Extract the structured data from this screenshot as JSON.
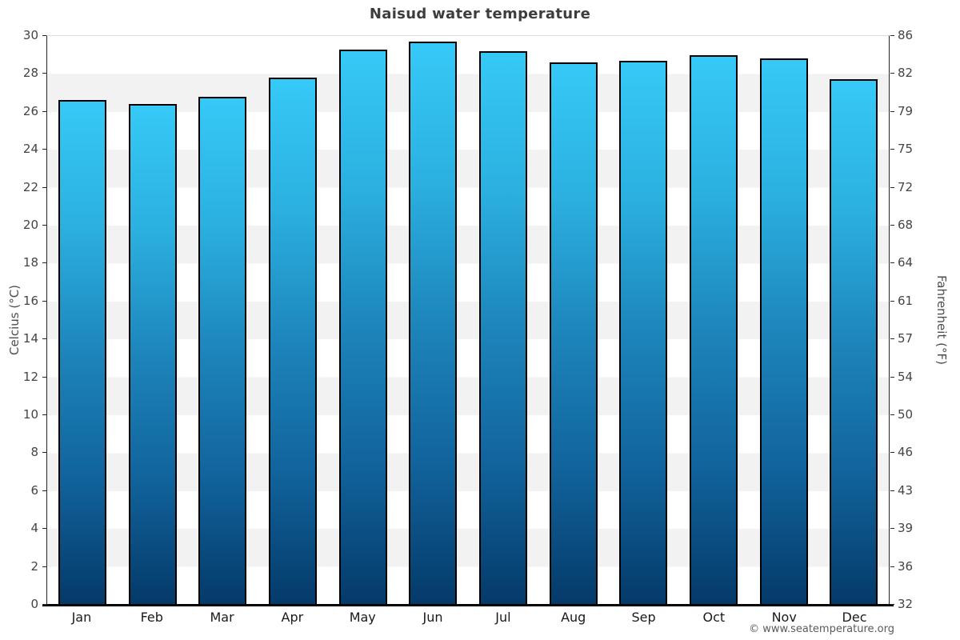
{
  "title": "Naisud water temperature",
  "y_axis_left": {
    "label": "Celcius (°C)"
  },
  "y_axis_right": {
    "label": "Fahrenheit (°F)"
  },
  "footer": {
    "copyright": "© www.seatemperature.org"
  },
  "chart_data": {
    "type": "bar",
    "title": "Naisud water temperature",
    "categories": [
      "Jan",
      "Feb",
      "Mar",
      "Apr",
      "May",
      "Jun",
      "Jul",
      "Aug",
      "Sep",
      "Oct",
      "Nov",
      "Dec"
    ],
    "values": [
      26.6,
      26.4,
      26.8,
      27.8,
      29.3,
      29.7,
      29.2,
      28.6,
      28.7,
      29.0,
      28.8,
      27.7
    ],
    "unit": "°C",
    "xlabel": "",
    "ylabel_left": "Celcius (°C)",
    "ylabel_right": "Fahrenheit (°F)",
    "ylim": [
      0,
      30
    ],
    "yticks_celsius": [
      0,
      2,
      4,
      6,
      8,
      10,
      12,
      14,
      16,
      18,
      20,
      22,
      24,
      26,
      28,
      30
    ],
    "yticks_fahrenheit": [
      32,
      36,
      39,
      43,
      46,
      50,
      54,
      57,
      61,
      64,
      68,
      72,
      75,
      79,
      82,
      86
    ],
    "grid": "alternating horizontal bands every 2 degrees, white and light gray",
    "legend": "none",
    "colors": {
      "bar_gradient_top": "#36c9f7",
      "bar_gradient_mid": "#1d85bb",
      "bar_gradient_bottom": "#043a69",
      "bar_border": "#000000",
      "band_white": "#ffffff",
      "band_gray": "#f2f2f2",
      "axis_line": "#262626",
      "x_axis_line": "#000000",
      "title_text": "#3d3d3d",
      "tick_text": "#444444"
    }
  }
}
